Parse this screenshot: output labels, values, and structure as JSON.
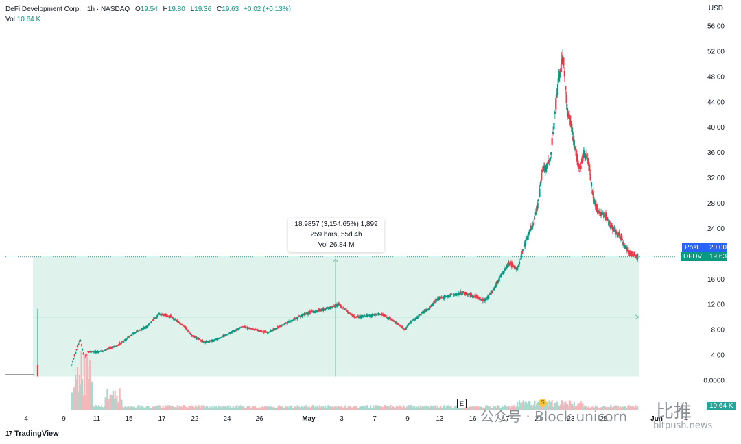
{
  "header": {
    "symbol_line": "DeFi Development Corp. · 1h · NASDAQ",
    "o_label": "O",
    "o_value": "19.54",
    "h_label": "H",
    "h_value": "19.80",
    "l_label": "L",
    "l_value": "19.36",
    "c_label": "C",
    "c_value": "19.63",
    "change": "+0.02 (+0.13%)",
    "vol_label": "Vol",
    "vol_value": "10.64 K",
    "currency": "USD"
  },
  "measure": {
    "line1": "18.9857 (3,154.65%) 1,899",
    "line2": "259 bars, 55d 4h",
    "line3": "Vol 26.84 M"
  },
  "price_tags": {
    "post_label": "Post",
    "post_value": "20.00",
    "symbol_label": "DFDV",
    "symbol_value": "19.63"
  },
  "markers": {
    "earnings": "E",
    "split": "S"
  },
  "volume_tag": "10.64 K",
  "brand": {
    "icon": "17",
    "name": "TradingView"
  },
  "watermark": {
    "wechat": "公众号 · Block unicorn",
    "cn": "比推",
    "url": "bitpush.news"
  },
  "colors": {
    "up": "#089981",
    "down": "#f23645",
    "range_fill": "#d9f0e9",
    "post_tag": "#2962ff",
    "symbol_tag": "#089981"
  },
  "chart_data": {
    "type": "candlestick",
    "title": "DeFi Development Corp. · 1h · NASDAQ",
    "y_ticks": [
      0,
      4,
      8,
      12,
      16,
      20,
      24,
      28,
      32,
      36,
      40,
      44,
      48,
      52,
      56
    ],
    "y_tick_labels": [
      "0.0000",
      "4.00",
      "8.00",
      "12.00",
      "16.00",
      "20.00",
      "24.00",
      "28.00",
      "32.00",
      "36.00",
      "40.00",
      "44.00",
      "48.00",
      "52.00",
      "56.00"
    ],
    "ylim": [
      0,
      57
    ],
    "x_tick_labels": [
      "4",
      "9",
      "11",
      "15",
      "17",
      "22",
      "24",
      "26",
      "May",
      "3",
      "7",
      "9",
      "13",
      "16",
      "17",
      "21",
      "23",
      "28",
      "Jun",
      "4"
    ],
    "price_path": [
      [
        0,
        1.0
      ],
      [
        8,
        1.0
      ],
      [
        9,
        2.5
      ],
      [
        11,
        6.5
      ],
      [
        12,
        3.5
      ],
      [
        13,
        4.5
      ],
      [
        16,
        4.5
      ],
      [
        20,
        5.5
      ],
      [
        24,
        7.5
      ],
      [
        27,
        8.5
      ],
      [
        30,
        10.5
      ],
      [
        33,
        10.0
      ],
      [
        36,
        8.5
      ],
      [
        38,
        7.0
      ],
      [
        41,
        6.0
      ],
      [
        44,
        6.5
      ],
      [
        47,
        7.5
      ],
      [
        50,
        8.5
      ],
      [
        53,
        8.0
      ],
      [
        56,
        7.5
      ],
      [
        59,
        8.5
      ],
      [
        62,
        9.5
      ],
      [
        65,
        10.5
      ],
      [
        68,
        11.0
      ],
      [
        71,
        11.5
      ],
      [
        73,
        12.0
      ],
      [
        75,
        11.0
      ],
      [
        77,
        10.0
      ],
      [
        80,
        10.2
      ],
      [
        83,
        10.5
      ],
      [
        86,
        9.5
      ],
      [
        88,
        8.5
      ],
      [
        89,
        8.0
      ],
      [
        90,
        9.0
      ],
      [
        93,
        10.5
      ],
      [
        95,
        11.5
      ],
      [
        97,
        13.0
      ],
      [
        100,
        13.5
      ],
      [
        103,
        13.8
      ],
      [
        106,
        13.2
      ],
      [
        108,
        12.5
      ],
      [
        110,
        14.0
      ],
      [
        112,
        16.5
      ],
      [
        114,
        18.5
      ],
      [
        116,
        17.5
      ],
      [
        118,
        22.0
      ],
      [
        120,
        25.0
      ],
      [
        121,
        28.0
      ],
      [
        122,
        33.0
      ],
      [
        124,
        35.0
      ],
      [
        125,
        42.0
      ],
      [
        126,
        48.0
      ],
      [
        127,
        51.0
      ],
      [
        128,
        43.0
      ],
      [
        129,
        40.0
      ],
      [
        130,
        36.0
      ],
      [
        131,
        33.0
      ],
      [
        132,
        36.0
      ],
      [
        133,
        35.0
      ],
      [
        134,
        30.0
      ],
      [
        135,
        27.0
      ],
      [
        137,
        26.0
      ],
      [
        139,
        24.0
      ],
      [
        141,
        22.5
      ],
      [
        142,
        21.0
      ],
      [
        143,
        20.0
      ],
      [
        145,
        19.63
      ]
    ],
    "measure_range": {
      "from_price": 0.6,
      "to_price": 19.6,
      "change": 18.9857,
      "change_pct": 3154.65
    },
    "last_price": 19.63,
    "post_price": 20.0
  }
}
